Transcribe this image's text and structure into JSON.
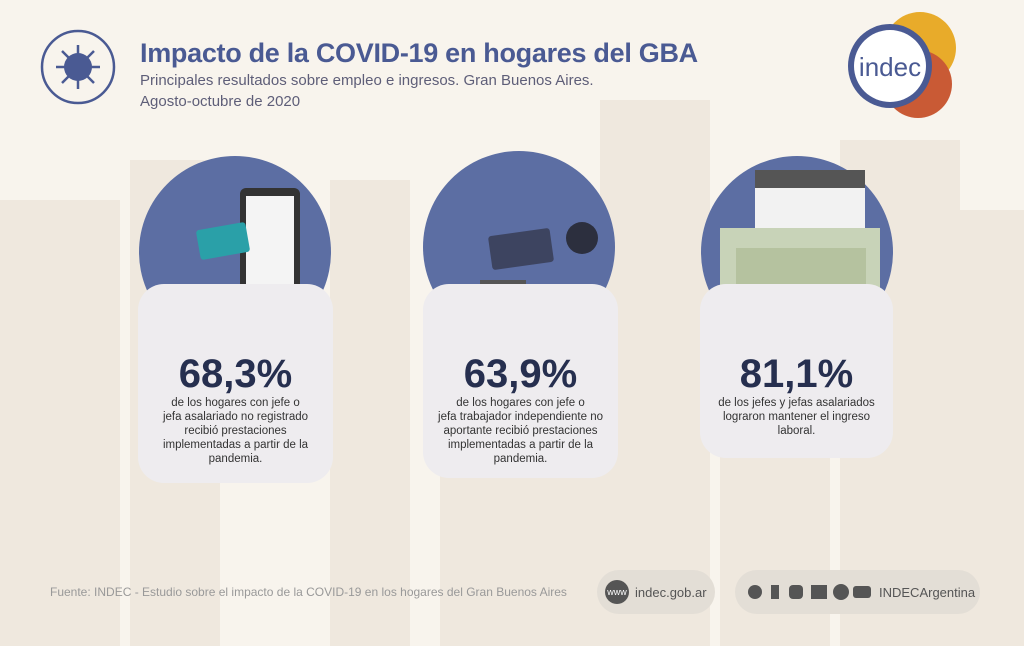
{
  "header": {
    "title": "Impacto de la COVID-19 en hogares del GBA",
    "subtitle": [
      "Principales resultados sobre empleo e ingresos. Gran Buenos Aires.",
      "Agosto-octubre de 2020"
    ]
  },
  "logo": "indec",
  "cards": [
    {
      "value": "68,3%",
      "lines": [
        "de los hogares con jefe o",
        "jefa asalariado no registrado",
        "recibió prestaciones",
        "implementadas a partir de la",
        "pandemia."
      ]
    },
    {
      "value": "63,9%",
      "lines": [
        "de los hogares con jefe o",
        "jefa trabajador independiente no",
        "aportante recibió prestaciones",
        "implementadas a partir de la",
        "pandemia."
      ]
    },
    {
      "value": "81,1%",
      "lines": [
        "de los jefes y jefas asalariados",
        "lograron mantener el ingreso",
        "laboral."
      ]
    }
  ],
  "footer": {
    "source": "Fuente:  INDEC - Estudio sobre el impacto de la COVID-19 en los hogares del Gran Buenos Aires",
    "website": "indec.gob.ar",
    "social": "INDECArgentina"
  }
}
